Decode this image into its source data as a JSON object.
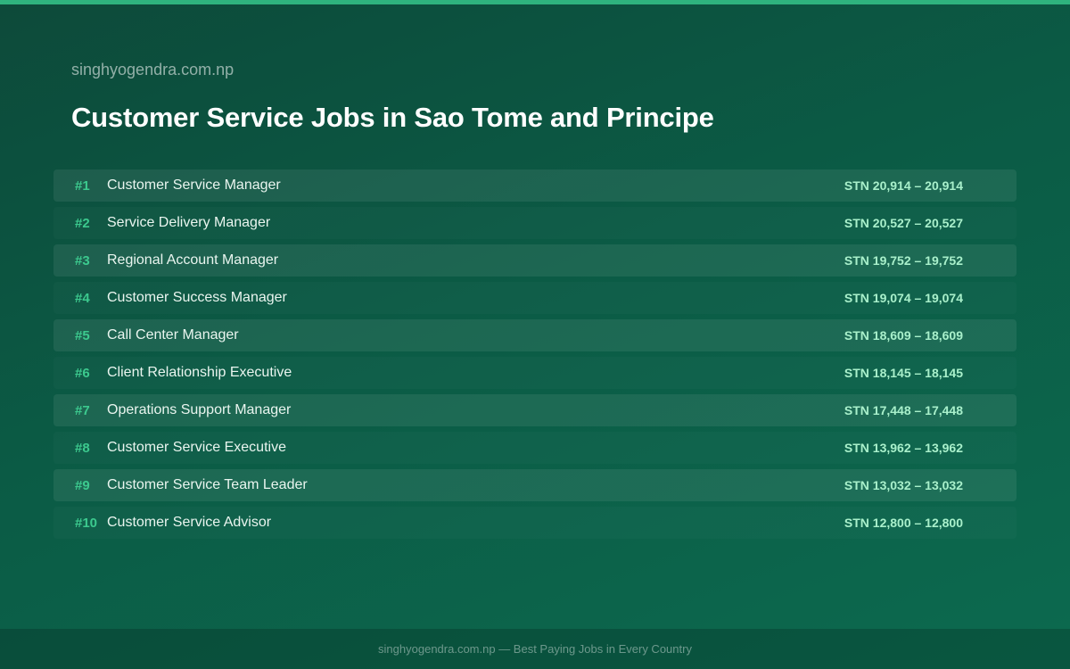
{
  "header": {
    "site": "singhyogendra.com.np",
    "title": "Customer Service Jobs in Sao Tome and Principe"
  },
  "jobs": [
    {
      "rank": "#1",
      "title": "Customer Service Manager",
      "salary": "STN 20,914 – 20,914"
    },
    {
      "rank": "#2",
      "title": "Service Delivery Manager",
      "salary": "STN 20,527 – 20,527"
    },
    {
      "rank": "#3",
      "title": "Regional Account Manager",
      "salary": "STN 19,752 – 19,752"
    },
    {
      "rank": "#4",
      "title": "Customer Success Manager",
      "salary": "STN 19,074 – 19,074"
    },
    {
      "rank": "#5",
      "title": "Call Center Manager",
      "salary": "STN 18,609 – 18,609"
    },
    {
      "rank": "#6",
      "title": "Client Relationship Executive",
      "salary": "STN 18,145 – 18,145"
    },
    {
      "rank": "#7",
      "title": "Operations Support Manager",
      "salary": "STN 17,448 – 17,448"
    },
    {
      "rank": "#8",
      "title": "Customer Service Executive",
      "salary": "STN 13,962 – 13,962"
    },
    {
      "rank": "#9",
      "title": "Customer Service Team Leader",
      "salary": "STN 13,032 – 13,032"
    },
    {
      "rank": "#10",
      "title": "Customer Service Advisor",
      "salary": "STN 12,800 – 12,800"
    }
  ],
  "footer": {
    "text": "singhyogendra.com.np — Best Paying Jobs in Every Country"
  },
  "colors": {
    "accent": "#2fb37e",
    "rank": "#3cc98e",
    "salary": "#a9f0cb"
  }
}
